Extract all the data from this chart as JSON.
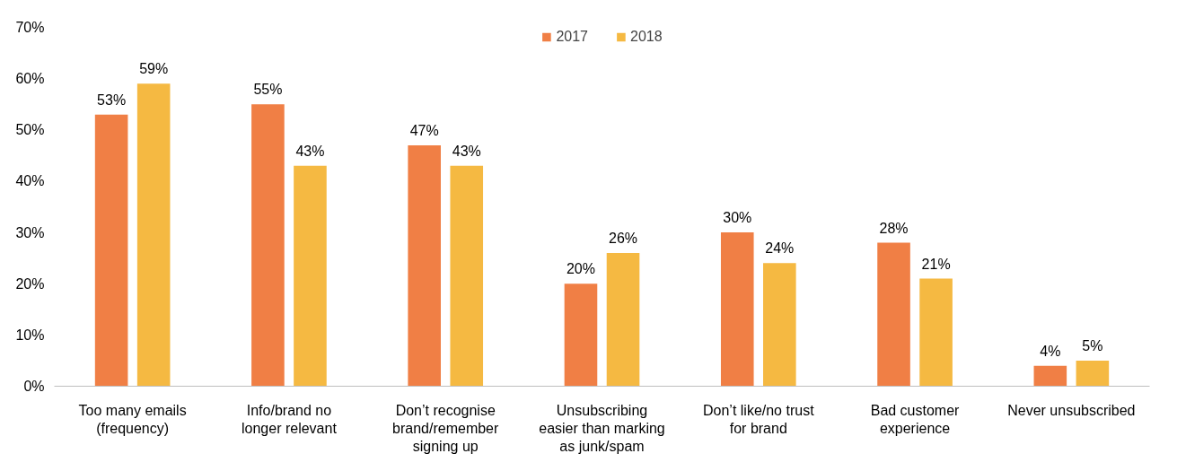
{
  "chart_data": {
    "type": "bar",
    "categories": [
      "Too many emails\n(frequency)",
      "Info/brand no\nlonger relevant",
      "Don’t recognise\nbrand/remember\nsigning up",
      "Unsubscribing\neasier than marking\nas junk/spam",
      "Don’t like/no trust\nfor brand",
      "Bad customer\nexperience",
      "Never unsubscribed"
    ],
    "series": [
      {
        "name": "2017",
        "color": "#f07f45",
        "values": [
          53,
          55,
          47,
          20,
          30,
          28,
          4
        ],
        "value_labels": [
          "53%",
          "55%",
          "47%",
          "20%",
          "30%",
          "28%",
          "4%"
        ]
      },
      {
        "name": "2018",
        "color": "#f5b942",
        "values": [
          59,
          43,
          43,
          26,
          24,
          21,
          5
        ],
        "value_labels": [
          "59%",
          "43%",
          "43%",
          "26%",
          "24%",
          "21%",
          "5%"
        ]
      }
    ],
    "ylim": [
      0,
      70
    ],
    "yticks": [
      {
        "value": 0,
        "label": "0%"
      },
      {
        "value": 10,
        "label": "10%"
      },
      {
        "value": 20,
        "label": "20%"
      },
      {
        "value": 30,
        "label": "30%"
      },
      {
        "value": 40,
        "label": "40%"
      },
      {
        "value": 50,
        "label": "50%"
      },
      {
        "value": 60,
        "label": "60%"
      },
      {
        "value": 70,
        "label": "70%"
      }
    ],
    "grid": false,
    "legend": "top"
  }
}
